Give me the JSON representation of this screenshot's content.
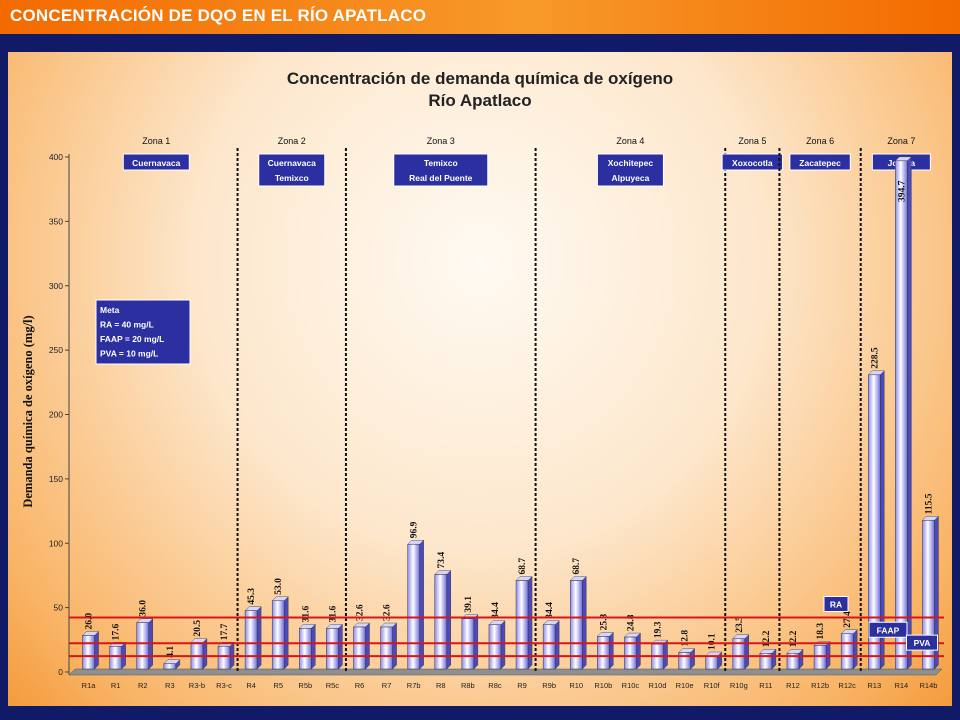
{
  "header": {
    "title": "CONCENTRACIÓN DE DQO EN EL RÍO APATLACO"
  },
  "colors": {
    "header_bg": "#f36a00",
    "page_bg": "#101a66",
    "box_bg": "#2b2fa0",
    "ref_line": "#d8161a",
    "bar": "#b9b8ff"
  },
  "chart_data": {
    "type": "bar",
    "title": [
      "Concentración de demanda química de oxígeno",
      "Río Apatlaco"
    ],
    "xlabel": "",
    "ylabel": "Demanda química de oxígeno (mg/l)",
    "ylim": [
      0,
      400
    ],
    "yticks": [
      0,
      50,
      100,
      150,
      200,
      250,
      300,
      350,
      400
    ],
    "grid": false,
    "categories": [
      "R1a",
      "R1",
      "R2",
      "R3",
      "R3-b",
      "R3-c",
      "R4",
      "R5",
      "R5b",
      "R5c",
      "R6",
      "R7",
      "R7b",
      "R8",
      "R8b",
      "R8c",
      "R9",
      "R9b",
      "R10",
      "R10b",
      "R10c",
      "R10d",
      "R10e",
      "R10f",
      "R10g",
      "R11",
      "R12",
      "R12b",
      "R12c",
      "R13",
      "R14",
      "R14b"
    ],
    "values": [
      26.0,
      17.6,
      36.0,
      4.1,
      20.5,
      17.7,
      45.3,
      53.0,
      31.6,
      31.6,
      32.6,
      32.6,
      96.9,
      73.4,
      39.1,
      34.4,
      68.7,
      34.4,
      68.7,
      25.3,
      24.8,
      19.3,
      12.8,
      10.1,
      23.5,
      12.2,
      12.2,
      18.3,
      27.4,
      228.5,
      394.7,
      115.5
    ],
    "value_labels": [
      "26.0",
      "17.6",
      "36.0",
      "4.1",
      "20.5",
      "17.7",
      "45.3",
      "53.0",
      "31.6",
      "31.6",
      "32.6",
      "32.6",
      "96.9",
      "73.4",
      "39.1",
      "34.4",
      "68.7",
      "34.4",
      "68.7",
      "25.3",
      "24.8",
      "19.3",
      "12.8",
      "10.1",
      "23.5",
      "12.2",
      "12.2",
      "18.3",
      "27.4",
      "228.5",
      "394.7",
      "115.5"
    ],
    "zones": [
      {
        "label": "Zona 1",
        "place": [
          "Cuernavaca"
        ],
        "start": 0,
        "end": 5
      },
      {
        "label": "Zona 2",
        "place": [
          "Cuernavaca",
          "Temixco"
        ],
        "start": 6,
        "end": 9
      },
      {
        "label": "Zona 3",
        "place": [
          "Temixco",
          "Real del Puente"
        ],
        "start": 10,
        "end": 16
      },
      {
        "label": "Zona 4",
        "place": [
          "Xochitepec",
          "Alpuyeca"
        ],
        "start": 17,
        "end": 23
      },
      {
        "label": "Zona 5",
        "place": [
          "Xoxocotla"
        ],
        "start": 24,
        "end": 25
      },
      {
        "label": "Zona 6",
        "place": [
          "Zacatepec"
        ],
        "start": 26,
        "end": 28
      },
      {
        "label": "Zona 7",
        "place": [
          "Jojutla"
        ],
        "start": 29,
        "end": 31
      }
    ],
    "reference_lines": [
      {
        "name": "RA",
        "value": 40
      },
      {
        "name": "FAAP",
        "value": 20
      },
      {
        "name": "PVA",
        "value": 10
      }
    ],
    "goal_box": [
      "Meta",
      "RA = 40 mg/L",
      "FAAP = 20 mg/L",
      "PVA = 10 mg/L"
    ]
  }
}
